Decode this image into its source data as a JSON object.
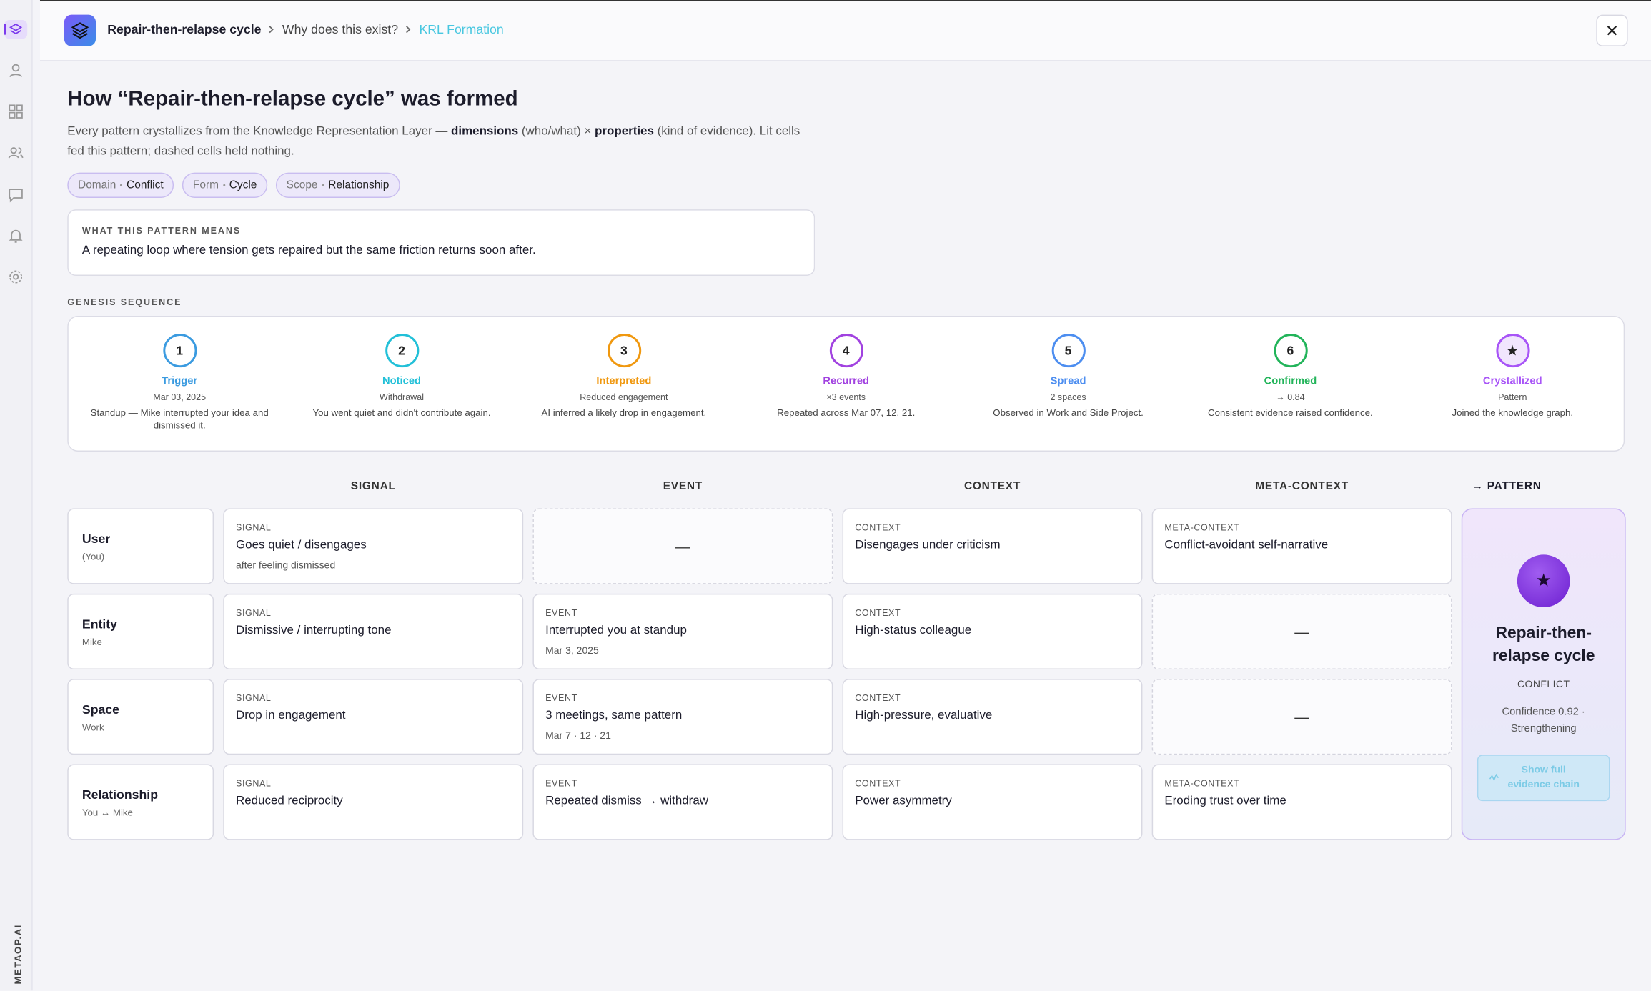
{
  "sidebar": {
    "brand": "METAOP.AI"
  },
  "header": {
    "breadcrumb": [
      "Repair-then-relapse cycle",
      "Why does this exist?",
      "KRL Formation"
    ]
  },
  "title": "How “Repair-then-relapse cycle” was formed",
  "description": [
    {
      "text": "Every pattern crystallizes from the Knowledge Representation Layer — "
    },
    {
      "text": "dimensions",
      "bold": true
    },
    {
      "text": " (who/what) × "
    },
    {
      "text": "properties",
      "bold": true
    },
    {
      "text": " (kind of evidence). Lit cells fed this pattern; dashed cells held nothing."
    }
  ],
  "tags": [
    {
      "key": "Domain",
      "value": "Conflict"
    },
    {
      "key": "Form",
      "value": "Cycle"
    },
    {
      "key": "Scope",
      "value": "Relationship"
    }
  ],
  "meaning": {
    "label": "WHAT THIS PATTERN MEANS",
    "text": "A repeating loop where tension gets repaired but the same friction returns soon after."
  },
  "genesis": {
    "label": "GENESIS SEQUENCE",
    "steps": [
      {
        "marker": "1",
        "title": "Trigger",
        "meta": "Mar 03, 2025",
        "detail": "Standup — Mike interrupted your idea and dismissed it.",
        "color": "#3b9be0"
      },
      {
        "marker": "2",
        "title": "Noticed",
        "meta": "Withdrawal",
        "detail": "You went quiet and didn't contribute again.",
        "color": "#22c0d8"
      },
      {
        "marker": "3",
        "title": "Interpreted",
        "meta": "Reduced engagement",
        "detail": "AI inferred a likely drop in engagement.",
        "color": "#f0980f"
      },
      {
        "marker": "4",
        "title": "Recurred",
        "meta": "×3 events",
        "detail": "Repeated across Mar 07, 12, 21.",
        "color": "#a142e0"
      },
      {
        "marker": "5",
        "title": "Spread",
        "meta": "2 spaces",
        "detail": "Observed in Work and Side Project.",
        "color": "#4d8ef0"
      },
      {
        "marker": "6",
        "title": "Confirmed",
        "meta": "→ 0.84",
        "detail": "Consistent evidence raised confidence.",
        "color": "#22b45a"
      },
      {
        "marker": "★",
        "title": "Crystallized",
        "meta": "Pattern",
        "detail": "Joined the knowledge graph.",
        "color": "#a855f7"
      }
    ]
  },
  "grid": {
    "columns": [
      "SIGNAL",
      "EVENT",
      "CONTEXT",
      "META-CONTEXT"
    ],
    "pattern_header": "→ PATTERN",
    "rows": [
      {
        "name": "User",
        "sub": "(You)",
        "cells": [
          {
            "kind": "SIGNAL",
            "text": "Goes quiet / disengages",
            "note": "after feeling dismissed"
          },
          {
            "placeholder": "—"
          },
          {
            "kind": "CONTEXT",
            "text": "Disengages under criticism"
          },
          {
            "kind": "META-CONTEXT",
            "text": "Conflict-avoidant self-narrative"
          }
        ]
      },
      {
        "name": "Entity",
        "sub": "Mike",
        "cells": [
          {
            "kind": "SIGNAL",
            "text": "Dismissive / interrupting tone"
          },
          {
            "kind": "EVENT",
            "text": "Interrupted you at standup",
            "note": "Mar 3, 2025"
          },
          {
            "kind": "CONTEXT",
            "text": "High-status colleague"
          },
          {
            "placeholder": "—"
          }
        ]
      },
      {
        "name": "Space",
        "sub": "Work",
        "cells": [
          {
            "kind": "SIGNAL",
            "text": "Drop in engagement"
          },
          {
            "kind": "EVENT",
            "text": "3 meetings, same pattern",
            "note": "Mar 7 · 12 · 21"
          },
          {
            "kind": "CONTEXT",
            "text": "High-pressure, evaluative"
          },
          {
            "placeholder": "—"
          }
        ]
      },
      {
        "name": "Relationship",
        "sub": "You ↔ Mike",
        "cells": [
          {
            "kind": "SIGNAL",
            "text": "Reduced reciprocity"
          },
          {
            "kind": "EVENT",
            "text": "Repeated dismiss → withdraw"
          },
          {
            "kind": "CONTEXT",
            "text": "Power asymmetry"
          },
          {
            "kind": "META-CONTEXT",
            "text": "Eroding trust over time"
          }
        ]
      }
    ],
    "pattern": {
      "icon": "★",
      "name": "Repair-then-relapse cycle",
      "category": "CONFLICT",
      "status": "Confidence 0.92 · Strengthening",
      "button": "Show full evidence chain"
    }
  }
}
